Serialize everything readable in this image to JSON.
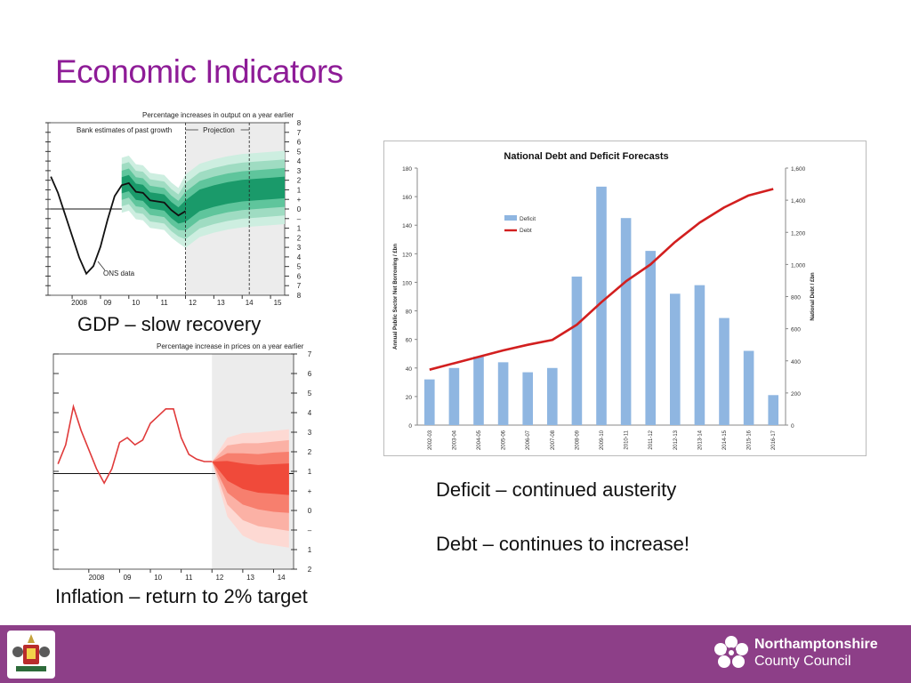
{
  "slide": {
    "title": "Economic Indicators",
    "captions": {
      "gdp": "GDP – slow recovery",
      "inflation": "Inflation – return to 2% target",
      "deficit": "Deficit – continued austerity",
      "debt": "Debt – continues to increase!"
    }
  },
  "footer": {
    "org_line1": "Northamptonshire",
    "org_line2": "County Council",
    "brand_color": "#8d3f88"
  },
  "colors": {
    "title": "#8e1c97",
    "gdp_fan": "#1a9a6a",
    "inflation_fan": "#f04a3a",
    "deficit_bar": "#8fb6e1",
    "debt_line": "#d21f1f"
  },
  "chart_data": [
    {
      "type": "area",
      "title": "Percentage increases in output on a year earlier",
      "annotations": [
        "Bank estimates of past growth",
        "Projection",
        "ONS data"
      ],
      "x_tick_labels": [
        "2008",
        "09",
        "10",
        "11",
        "12",
        "13",
        "14",
        "15"
      ],
      "y_tick_labels": [
        "8",
        "7",
        "6",
        "5",
        "4",
        "3",
        "2",
        "1",
        "+",
        "0",
        "–",
        "1",
        "2",
        "3",
        "4",
        "5",
        "6",
        "7",
        "8"
      ],
      "ylim": [
        -8,
        8
      ],
      "series": [
        {
          "name": "ONS data",
          "x": [
            2007.25,
            2007.5,
            2007.75,
            2008.0,
            2008.25,
            2008.5,
            2008.75,
            2009.0,
            2009.25,
            2009.5,
            2009.75,
            2010.0,
            2010.25,
            2010.5,
            2010.75,
            2011.0,
            2011.25,
            2011.5,
            2011.75,
            2012.0
          ],
          "values": [
            3.0,
            1.5,
            -0.5,
            -2.5,
            -4.5,
            -6.0,
            -5.3,
            -3.5,
            -1.0,
            1.2,
            2.2,
            2.4,
            1.6,
            1.5,
            0.8,
            0.7,
            0.6,
            -0.1,
            -0.6,
            -0.2
          ]
        }
      ],
      "projection_center": {
        "x": [
          2012.0,
          2012.5,
          2013.0,
          2013.5,
          2014.0,
          2014.5,
          2015.0,
          2015.5
        ],
        "values": [
          0.3,
          0.8,
          1.2,
          1.5,
          1.7,
          1.8,
          1.9,
          2.0
        ]
      },
      "grid": false,
      "legend": "none"
    },
    {
      "type": "area",
      "title": "Percentage increase in prices on a year earlier",
      "x_tick_labels": [
        "2008",
        "09",
        "10",
        "11",
        "12",
        "13",
        "14"
      ],
      "y_tick_labels": [
        "7",
        "6",
        "5",
        "4",
        "3",
        "2",
        "1",
        "+",
        "0",
        "–",
        "1",
        "2"
      ],
      "ylim": [
        -2,
        7
      ],
      "series": [
        {
          "x": [
            2007.0,
            2007.25,
            2007.5,
            2007.75,
            2008.0,
            2008.25,
            2008.5,
            2008.75,
            2009.0,
            2009.25,
            2009.5,
            2009.75,
            2010.0,
            2010.25,
            2010.5,
            2010.75,
            2011.0,
            2011.25,
            2011.5,
            2011.75,
            2012.0
          ],
          "values": [
            2.4,
            3.2,
            4.8,
            3.8,
            3.0,
            2.2,
            1.6,
            2.2,
            3.3,
            3.5,
            3.2,
            3.4,
            4.1,
            4.4,
            4.7,
            4.7,
            3.5,
            2.8,
            2.6,
            2.5,
            2.5
          ]
        }
      ],
      "projection_center": {
        "x": [
          2012.0,
          2012.5,
          2013.0,
          2013.5,
          2014.0,
          2014.5
        ],
        "values": [
          2.5,
          2.2,
          2.0,
          1.9,
          1.9,
          1.9
        ]
      },
      "grid": false,
      "legend": "none"
    },
    {
      "type": "bar",
      "title": "National Debt and Deficit Forecasts",
      "categories": [
        "2002-03",
        "2003-04",
        "2004-05",
        "2005-06",
        "2006-07",
        "2007-08",
        "2008-09",
        "2009-10",
        "2010-11",
        "2011-12",
        "2012-13",
        "2013-14",
        "2014-15",
        "2015-16",
        "2016-17"
      ],
      "series": [
        {
          "name": "Deficit",
          "type": "bar",
          "axis": "left",
          "values": [
            32,
            40,
            48,
            44,
            37,
            40,
            104,
            167,
            145,
            122,
            92,
            98,
            75,
            52,
            21
          ]
        },
        {
          "name": "Debt",
          "type": "line",
          "axis": "right",
          "values": [
            345,
            385,
            425,
            465,
            500,
            530,
            625,
            765,
            895,
            1000,
            1140,
            1260,
            1355,
            1430,
            1470
          ]
        }
      ],
      "ylabel": "Annual Public Sector Net Borrowing / £bn",
      "y2label": "National Debt / £bn",
      "ylim": [
        0,
        180
      ],
      "y2lim": [
        0,
        1600
      ],
      "y_ticks": [
        "0",
        "20",
        "40",
        "60",
        "80",
        "100",
        "120",
        "140",
        "160",
        "180"
      ],
      "y2_ticks": [
        "0",
        "200",
        "400",
        "600",
        "800",
        "1,000",
        "1,200",
        "1,400",
        "1,600"
      ],
      "grid": false,
      "legend": "top-left"
    }
  ]
}
